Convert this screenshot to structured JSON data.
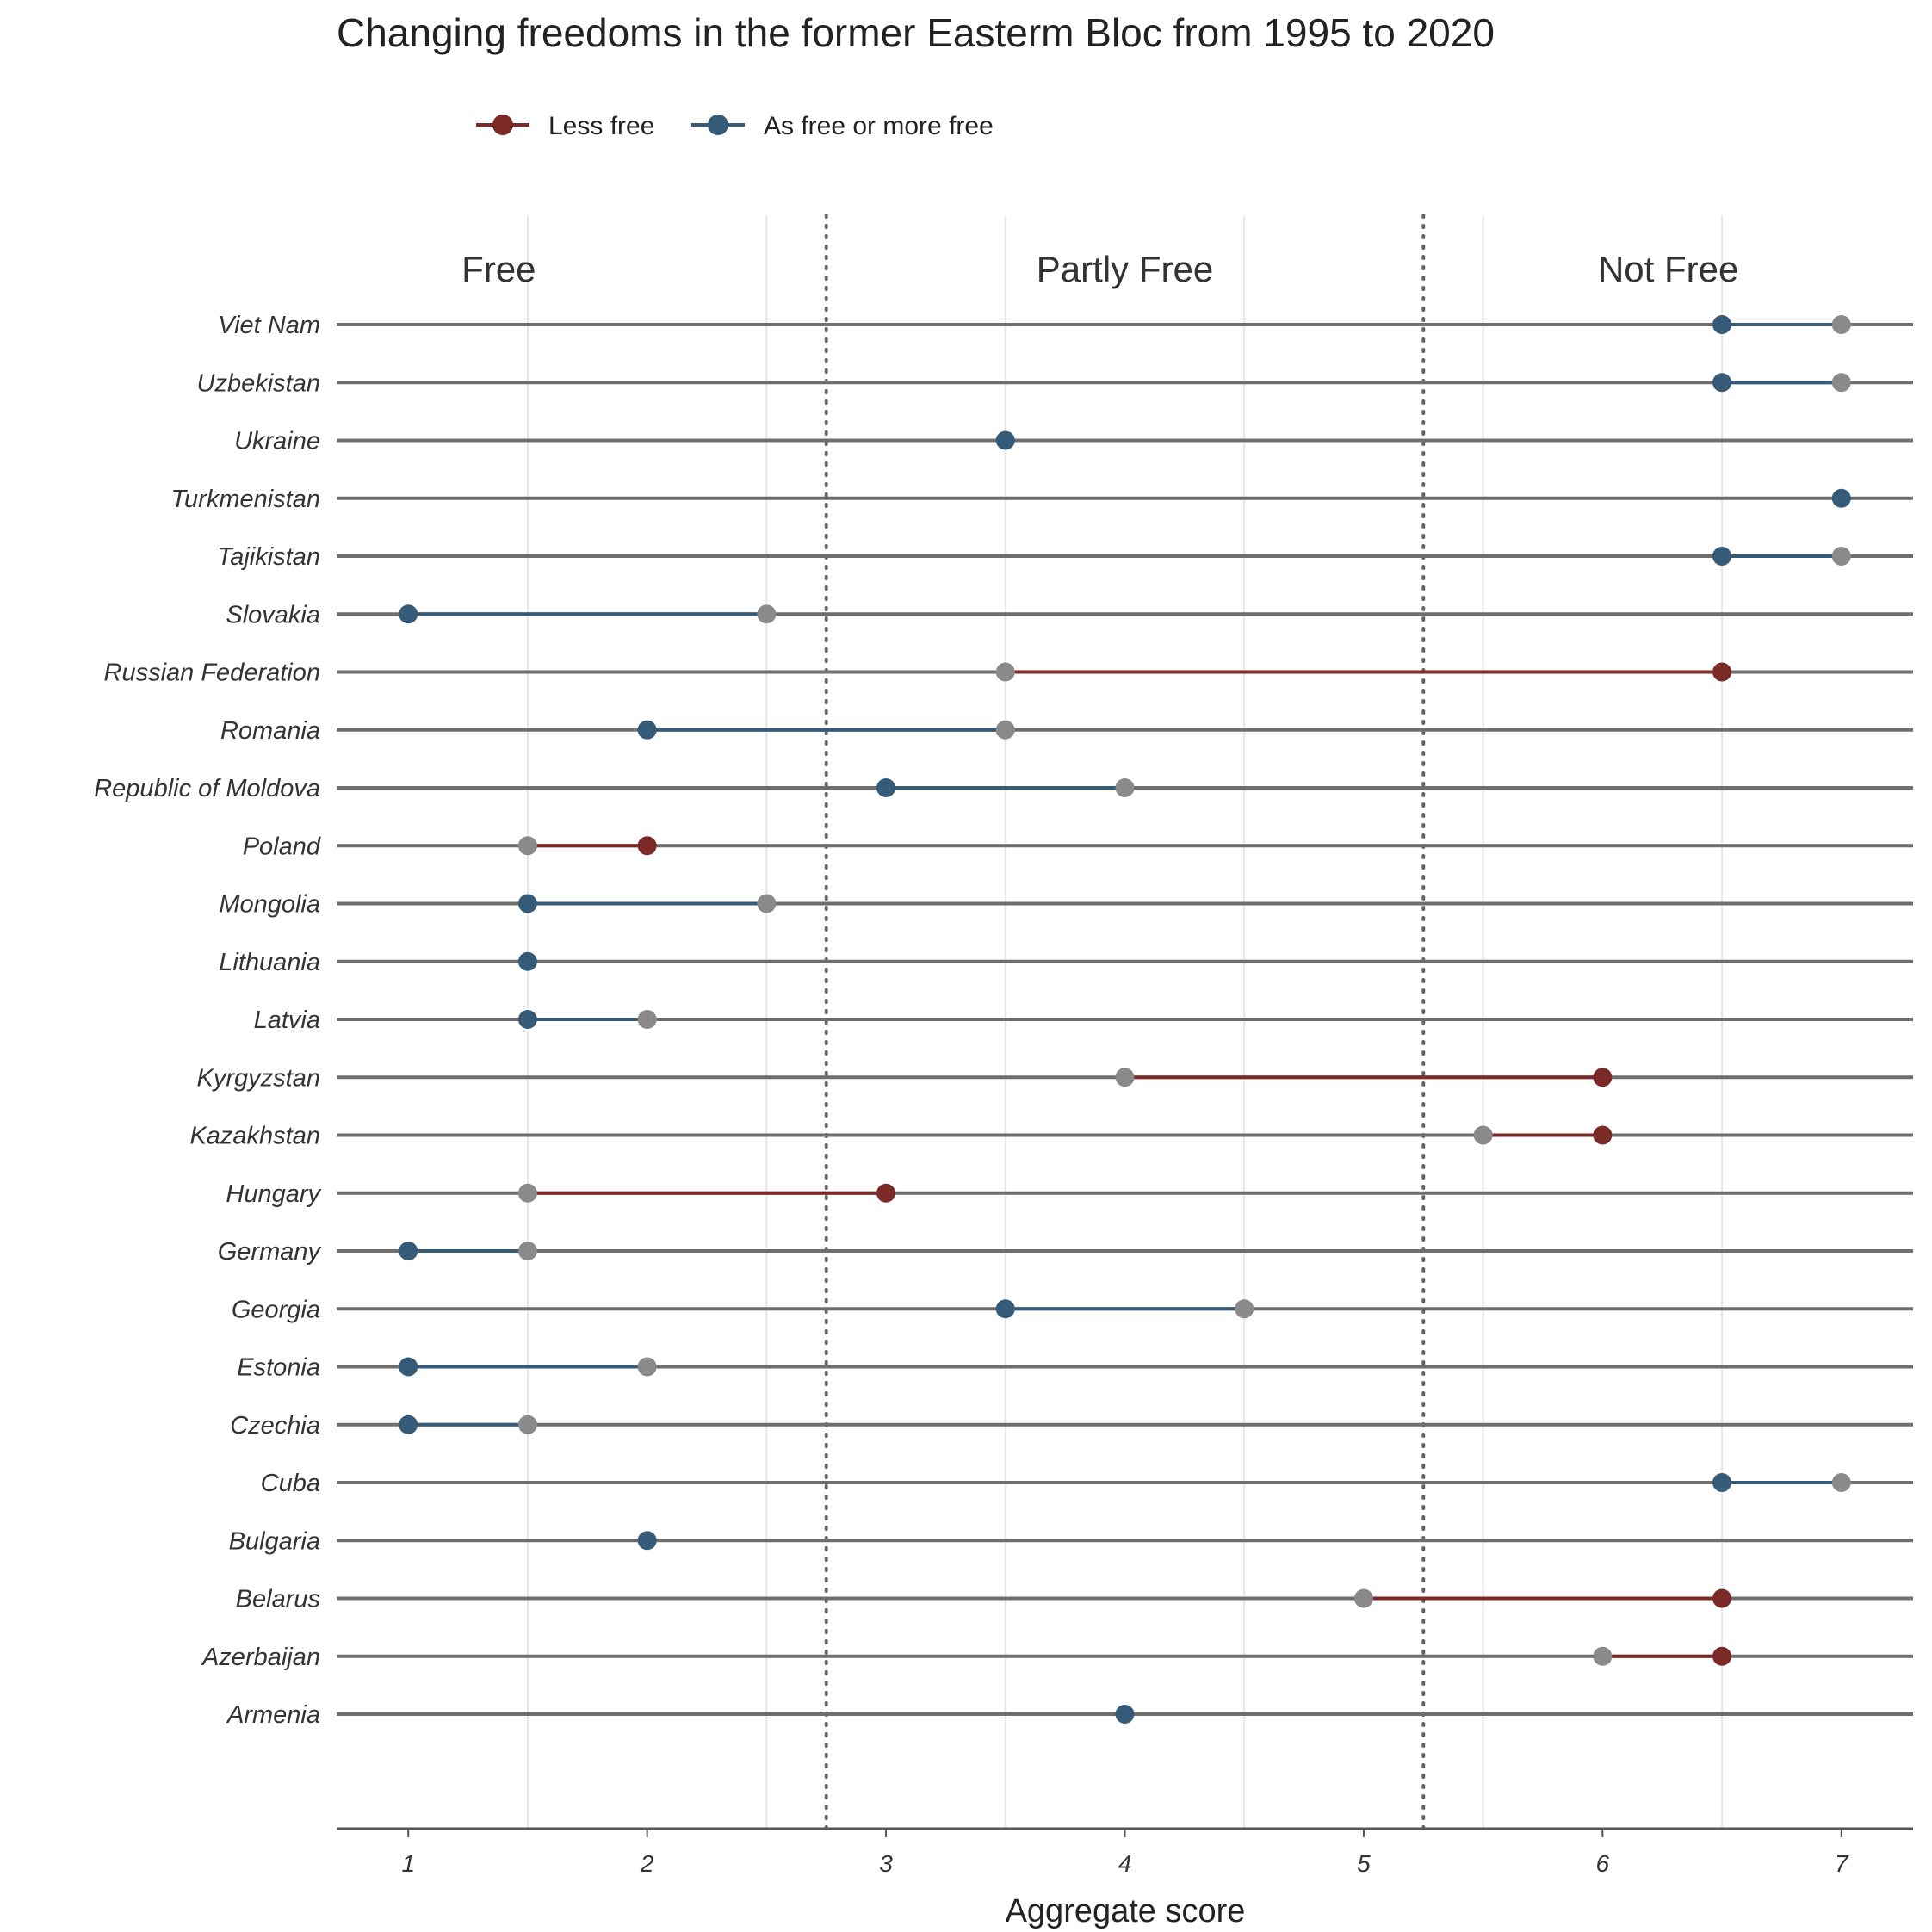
{
  "chart_data": {
    "type": "dumbbell",
    "title": "Changing freedoms in the former Easterm Bloc from 1995 to 2020",
    "xlabel": "Aggregate score",
    "ylabel": "",
    "xlim": [
      0.7,
      7.3
    ],
    "x_ticks": [
      1,
      2,
      3,
      4,
      5,
      6,
      7
    ],
    "grid": true,
    "legend_position": "top-left",
    "legend": [
      {
        "name": "Less free",
        "color": "#7b2a27"
      },
      {
        "name": "As free or more free",
        "color": "#365b78"
      }
    ],
    "start_point_color": "#8a8a8a",
    "regions": [
      {
        "label": "Free",
        "from": 0.7,
        "to": 2.75
      },
      {
        "label": "Partly Free",
        "from": 2.75,
        "to": 5.25
      },
      {
        "label": "Not Free",
        "from": 5.25,
        "to": 7.3
      }
    ],
    "thresholds": [
      2.75,
      5.25
    ],
    "countries": [
      {
        "name": "Viet Nam",
        "score_1995": 7.0,
        "score_2020": 6.5,
        "change": "As free or more free"
      },
      {
        "name": "Uzbekistan",
        "score_1995": 7.0,
        "score_2020": 6.5,
        "change": "As free or more free"
      },
      {
        "name": "Ukraine",
        "score_1995": 3.5,
        "score_2020": 3.5,
        "change": "As free or more free"
      },
      {
        "name": "Turkmenistan",
        "score_1995": 7.0,
        "score_2020": 7.0,
        "change": "As free or more free"
      },
      {
        "name": "Tajikistan",
        "score_1995": 7.0,
        "score_2020": 6.5,
        "change": "As free or more free"
      },
      {
        "name": "Slovakia",
        "score_1995": 2.5,
        "score_2020": 1.0,
        "change": "As free or more free"
      },
      {
        "name": "Russian Federation",
        "score_1995": 3.5,
        "score_2020": 6.5,
        "change": "Less free"
      },
      {
        "name": "Romania",
        "score_1995": 3.5,
        "score_2020": 2.0,
        "change": "As free or more free"
      },
      {
        "name": "Republic of Moldova",
        "score_1995": 4.0,
        "score_2020": 3.0,
        "change": "As free or more free"
      },
      {
        "name": "Poland",
        "score_1995": 1.5,
        "score_2020": 2.0,
        "change": "Less free"
      },
      {
        "name": "Mongolia",
        "score_1995": 2.5,
        "score_2020": 1.5,
        "change": "As free or more free"
      },
      {
        "name": "Lithuania",
        "score_1995": 1.5,
        "score_2020": 1.5,
        "change": "As free or more free"
      },
      {
        "name": "Latvia",
        "score_1995": 2.0,
        "score_2020": 1.5,
        "change": "As free or more free"
      },
      {
        "name": "Kyrgyzstan",
        "score_1995": 4.0,
        "score_2020": 6.0,
        "change": "Less free"
      },
      {
        "name": "Kazakhstan",
        "score_1995": 5.5,
        "score_2020": 6.0,
        "change": "Less free"
      },
      {
        "name": "Hungary",
        "score_1995": 1.5,
        "score_2020": 3.0,
        "change": "Less free"
      },
      {
        "name": "Germany",
        "score_1995": 1.5,
        "score_2020": 1.0,
        "change": "As free or more free"
      },
      {
        "name": "Georgia",
        "score_1995": 4.5,
        "score_2020": 3.5,
        "change": "As free or more free"
      },
      {
        "name": "Estonia",
        "score_1995": 2.0,
        "score_2020": 1.0,
        "change": "As free or more free"
      },
      {
        "name": "Czechia",
        "score_1995": 1.5,
        "score_2020": 1.0,
        "change": "As free or more free"
      },
      {
        "name": "Cuba",
        "score_1995": 7.0,
        "score_2020": 6.5,
        "change": "As free or more free"
      },
      {
        "name": "Bulgaria",
        "score_1995": 2.0,
        "score_2020": 2.0,
        "change": "As free or more free"
      },
      {
        "name": "Belarus",
        "score_1995": 5.0,
        "score_2020": 6.5,
        "change": "Less free"
      },
      {
        "name": "Azerbaijan",
        "score_1995": 6.0,
        "score_2020": 6.5,
        "change": "Less free"
      },
      {
        "name": "Armenia",
        "score_1995": 4.0,
        "score_2020": 4.0,
        "change": "As free or more free"
      }
    ]
  }
}
